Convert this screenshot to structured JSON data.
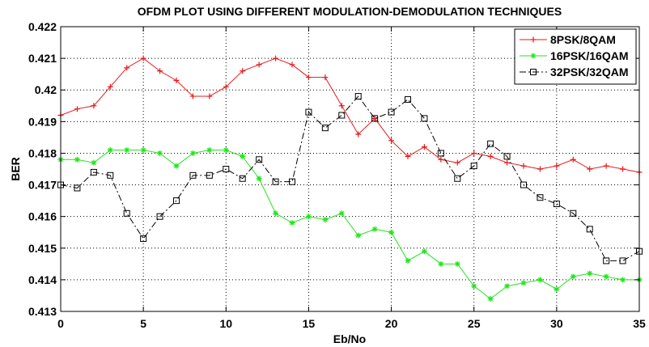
{
  "chart_data": {
    "type": "line",
    "title": "OFDM PLOT USING DIFFERENT MODULATION-DEMODULATION TECHNIQUES",
    "xlabel": "Eb/No",
    "ylabel": "BER",
    "xlim": [
      0,
      35
    ],
    "ylim": [
      0.413,
      0.422
    ],
    "x_ticks": [
      "0",
      "5",
      "10",
      "15",
      "20",
      "25",
      "30",
      "35"
    ],
    "y_ticks": [
      "0.413",
      "0.414",
      "0.415",
      "0.416",
      "0.417",
      "0.418",
      "0.419",
      "0.42",
      "0.421",
      "0.422"
    ],
    "grid": true,
    "legend_position": "top-right",
    "x": [
      0,
      1,
      2,
      3,
      4,
      5,
      6,
      7,
      8,
      9,
      10,
      11,
      12,
      13,
      14,
      15,
      16,
      17,
      18,
      19,
      20,
      21,
      22,
      23,
      24,
      25,
      26,
      27,
      28,
      29,
      30,
      31,
      32,
      33,
      34,
      35
    ],
    "series": [
      {
        "name": "8PSK/8QAM",
        "color": "#e8191c",
        "marker": "plus",
        "dash": "solid",
        "values": [
          0.4192,
          0.4194,
          0.4195,
          0.4201,
          0.4207,
          0.421,
          0.4206,
          0.4203,
          0.4198,
          0.4198,
          0.4201,
          0.4206,
          0.4208,
          0.421,
          0.4208,
          0.4204,
          0.4204,
          0.4195,
          0.4186,
          0.4191,
          0.4184,
          0.4179,
          0.4182,
          0.4178,
          0.4177,
          0.418,
          0.4179,
          0.4177,
          0.4176,
          0.4175,
          0.4176,
          0.4178,
          0.4175,
          0.4176,
          0.4175,
          0.4174
        ]
      },
      {
        "name": "16PSK/16QAM",
        "color": "#22e51c",
        "marker": "star",
        "dash": "solid",
        "values": [
          0.4178,
          0.4178,
          0.4177,
          0.4181,
          0.4181,
          0.4181,
          0.418,
          0.4176,
          0.418,
          0.4181,
          0.4181,
          0.4179,
          0.4172,
          0.4161,
          0.4158,
          0.416,
          0.4159,
          0.4161,
          0.4154,
          0.4156,
          0.4155,
          0.4146,
          0.4149,
          0.4145,
          0.4145,
          0.4138,
          0.4134,
          0.4138,
          0.4139,
          0.414,
          0.4137,
          0.4141,
          0.4142,
          0.4141,
          0.414,
          0.414
        ]
      },
      {
        "name": "32PSK/32QAM",
        "color": "#000000",
        "marker": "square",
        "dash": "dashdot",
        "values": [
          0.417,
          0.4169,
          0.4174,
          0.4173,
          0.4161,
          0.4153,
          0.416,
          0.4165,
          0.4173,
          0.4173,
          0.4175,
          0.4172,
          0.4178,
          0.4171,
          0.4171,
          0.4193,
          0.4188,
          0.4192,
          0.4198,
          0.4191,
          0.4193,
          0.4197,
          0.4191,
          0.418,
          0.4172,
          0.4176,
          0.4183,
          0.4179,
          0.417,
          0.4166,
          0.4164,
          0.4161,
          0.4156,
          0.4146,
          0.4146,
          0.4149
        ]
      }
    ]
  }
}
